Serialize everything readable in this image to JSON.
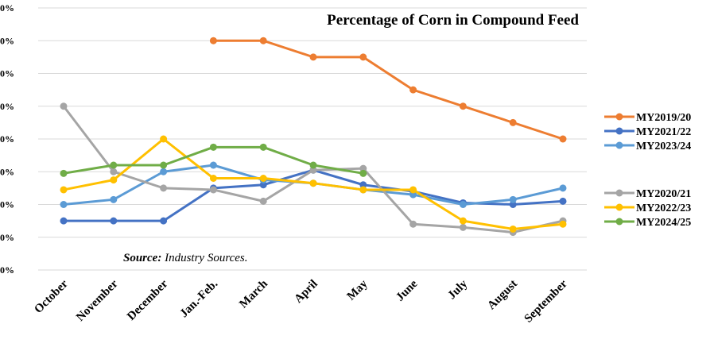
{
  "chart_data": {
    "type": "line",
    "title": "Percentage of Corn in Compound Feed",
    "source_label": "Source:",
    "source_text": " Industry Sources.",
    "categories": [
      "October",
      "November",
      "December",
      "Jan.-Feb.",
      "March",
      "April",
      "May",
      "June",
      "July",
      "August",
      "September"
    ],
    "y_tick_labels": [
      "0%",
      "0%",
      "0%",
      "0%",
      "0%",
      "0%",
      "0%",
      "0%",
      "0%"
    ],
    "ylim": [
      0,
      8
    ],
    "grid": true,
    "legend_placement": "right",
    "series": [
      {
        "name": "MY2019/20",
        "color": "#ED7D31",
        "legend_group": 0,
        "values": [
          null,
          null,
          null,
          7.0,
          7.0,
          6.5,
          6.5,
          5.5,
          5.0,
          4.5,
          4.0
        ]
      },
      {
        "name": "MY2021/22",
        "color": "#4472C4",
        "legend_group": 0,
        "values": [
          1.5,
          1.5,
          1.5,
          2.5,
          2.6,
          3.05,
          2.6,
          2.4,
          2.05,
          2.0,
          2.1
        ]
      },
      {
        "name": "MY2023/24",
        "color": "#5B9BD5",
        "legend_group": 0,
        "values": [
          2.0,
          2.15,
          3.0,
          3.2,
          2.75,
          2.65,
          2.45,
          2.3,
          2.0,
          2.15,
          2.5
        ]
      },
      {
        "name": "MY2020/21",
        "color": "#A5A5A5",
        "legend_group": 1,
        "values": [
          5.0,
          3.0,
          2.5,
          2.45,
          2.1,
          3.05,
          3.1,
          1.4,
          1.3,
          1.15,
          1.5
        ]
      },
      {
        "name": "MY2022/23",
        "color": "#FFC000",
        "legend_group": 1,
        "values": [
          2.45,
          2.75,
          4.0,
          2.8,
          2.8,
          2.65,
          2.45,
          2.45,
          1.5,
          1.25,
          1.4
        ]
      },
      {
        "name": "MY2024/25",
        "color": "#70AD47",
        "legend_group": 1,
        "values": [
          2.95,
          3.2,
          3.2,
          3.75,
          3.75,
          3.2,
          2.95,
          null,
          null,
          null,
          null
        ]
      }
    ]
  }
}
